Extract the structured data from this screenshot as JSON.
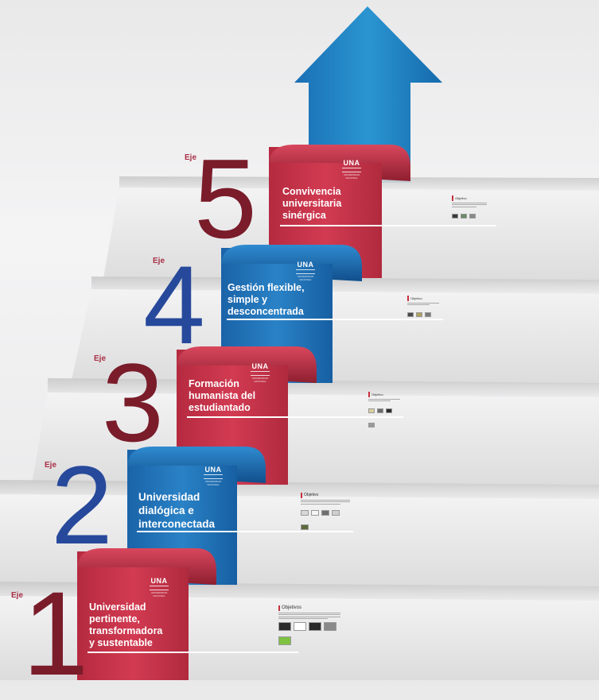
{
  "axis_word": "Eje",
  "logo": {
    "text": "UNA",
    "subtext": "UNIVERSIDAD NACIONAL"
  },
  "axes": [
    {
      "number": "1",
      "title": "Universidad\npertinente,\ntransformadora\ny sustentable",
      "color": "#c7334a",
      "card_heading": "Objetivos",
      "swatches": [
        "#2b2b2b",
        "#ffffff",
        "#2b2b2b",
        "#8a8a8a",
        "#7fc242"
      ]
    },
    {
      "number": "2",
      "title": "Universidad\ndialógica e\ninterconectada",
      "color": "#1f71b7",
      "card_heading": "Objetivo",
      "swatches": [
        "#d8d8d8",
        "#f5f5f5",
        "#6f6f6f",
        "#cfcfcf",
        "#5c6a3a"
      ]
    },
    {
      "number": "3",
      "title": "Formación\nhumanista del\nestudiantado",
      "color": "#c7334a",
      "card_heading": "Objetivo",
      "swatches": [
        "#d8d0a0",
        "#6a6a6a",
        "#2b2b2b",
        "#9a9a9a"
      ]
    },
    {
      "number": "4",
      "title": "Gestión flexible,\nsimple y\ndesconcentrada",
      "color": "#1f71b7",
      "card_heading": "Objetivo",
      "swatches": [
        "#4a4a4a",
        "#b0a060",
        "#7a7a7a"
      ]
    },
    {
      "number": "5",
      "title": "Convivencia\nuniversitaria\nsinérgica",
      "color": "#c7334a",
      "card_heading": "Objetivo",
      "swatches": [
        "#3a3a3a",
        "#6a8a6a",
        "#8a8a8a"
      ]
    }
  ],
  "colors": {
    "red": "#c7334a",
    "blue": "#1f71b7",
    "dark_red": "#7a1c2a",
    "dark_blue": "#27499b",
    "arrow": "#1f86c7"
  }
}
